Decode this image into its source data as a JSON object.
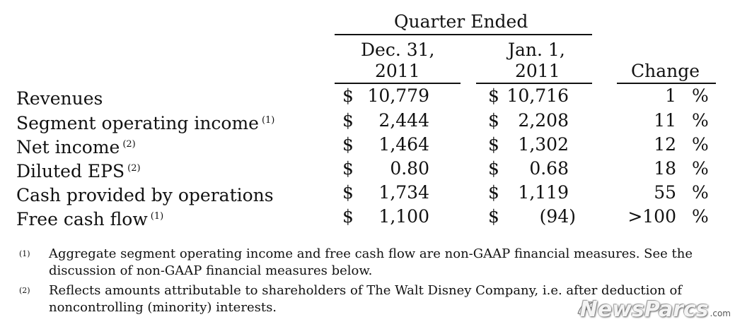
{
  "header": {
    "group_label": "Quarter Ended",
    "col1_line1": "Dec. 31,",
    "col1_line2": "2011",
    "col2_line1": "Jan. 1,",
    "col2_line2": "2011",
    "change_label": "Change"
  },
  "rows": [
    {
      "label": "Revenues",
      "ref": "",
      "sym1": "$",
      "v1": "10,779",
      "sym2": "$",
      "v2": "10,716",
      "change": "1",
      "pct": "%"
    },
    {
      "label": "Segment operating income",
      "ref": "(1)",
      "sym1": "$",
      "v1": "2,444",
      "sym2": "$",
      "v2": "2,208",
      "change": "11",
      "pct": "%"
    },
    {
      "label": "Net income",
      "ref": "(2)",
      "sym1": "$",
      "v1": "1,464",
      "sym2": "$",
      "v2": "1,302",
      "change": "12",
      "pct": "%"
    },
    {
      "label": "Diluted EPS",
      "ref": "(2)",
      "sym1": "$",
      "v1": "0.80",
      "sym2": "$",
      "v2": "0.68",
      "change": "18",
      "pct": "%"
    },
    {
      "label": "Cash provided by operations",
      "ref": "",
      "sym1": "$",
      "v1": "1,734",
      "sym2": "$",
      "v2": "1,119",
      "change": "55",
      "pct": "%"
    },
    {
      "label": "Free cash flow",
      "ref": "(1)",
      "sym1": "$",
      "v1": "1,100",
      "sym2": "$",
      "v2": "(94)",
      "change": ">100",
      "pct": "%"
    }
  ],
  "footnotes": [
    {
      "mark": "(1)",
      "line1": "Aggregate segment operating income and free cash flow are non-GAAP financial measures.  See the",
      "line2": "discussion of non-GAAP financial measures below."
    },
    {
      "mark": "(2)",
      "line1": "Reflects amounts attributable to shareholders of The Walt Disney Company, i.e. after deduction of",
      "line2": "noncontrolling (minority) interests."
    }
  ],
  "watermark": {
    "brand": "NewsParcs",
    "suffix": ".com"
  }
}
